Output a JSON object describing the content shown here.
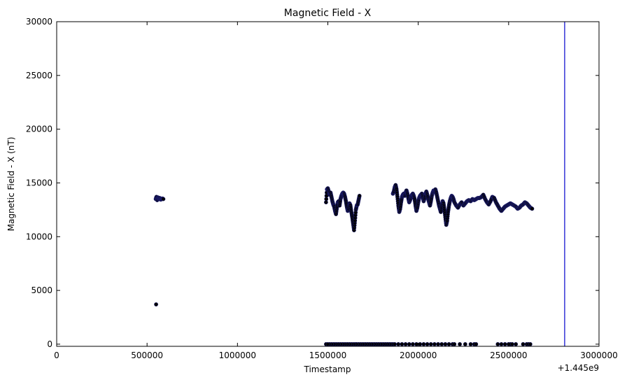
{
  "chart_data": {
    "type": "scatter",
    "title": "Magnetic Field - X",
    "xlabel": "Timestamp",
    "ylabel": "Magnetic Field - X (nT)",
    "x_offset_label": "+1.445e9",
    "xlim": [
      0,
      3000000
    ],
    "ylim": [
      -200,
      30000
    ],
    "xticks": [
      0,
      500000,
      1000000,
      1500000,
      2000000,
      2500000,
      3000000
    ],
    "yticks": [
      0,
      5000,
      10000,
      15000,
      20000,
      25000,
      30000
    ],
    "grid": false,
    "vline": {
      "x": 2810000,
      "color": "#0000cc"
    },
    "series": [
      {
        "marker_color": "#000000",
        "edge_color": "#1a1a66",
        "points": [
          [
            548000,
            13500
          ],
          [
            552000,
            13700
          ],
          [
            556000,
            13400
          ],
          [
            560000,
            13650
          ],
          [
            565000,
            13550
          ],
          [
            570000,
            13600
          ],
          [
            575000,
            13450
          ],
          [
            580000,
            13500
          ],
          [
            585000,
            13550
          ],
          [
            590000,
            13500
          ],
          [
            550000,
            3700
          ],
          [
            1490000,
            13200
          ],
          [
            1495000,
            14400
          ],
          [
            1500000,
            14500
          ],
          [
            1505000,
            14200
          ],
          [
            1510000,
            13900
          ],
          [
            1515000,
            14100
          ],
          [
            1520000,
            13700
          ],
          [
            1525000,
            13300
          ],
          [
            1530000,
            13000
          ],
          [
            1535000,
            12800
          ],
          [
            1540000,
            12400
          ],
          [
            1545000,
            12100
          ],
          [
            1550000,
            12700
          ],
          [
            1555000,
            13200
          ],
          [
            1560000,
            13300
          ],
          [
            1565000,
            12900
          ],
          [
            1570000,
            13500
          ],
          [
            1575000,
            13800
          ],
          [
            1580000,
            14000
          ],
          [
            1585000,
            14100
          ],
          [
            1590000,
            14000
          ],
          [
            1595000,
            13700
          ],
          [
            1600000,
            13300
          ],
          [
            1605000,
            12800
          ],
          [
            1610000,
            12400
          ],
          [
            1615000,
            12600
          ],
          [
            1620000,
            13100
          ],
          [
            1625000,
            12900
          ],
          [
            1630000,
            12300
          ],
          [
            1635000,
            11800
          ],
          [
            1640000,
            11200
          ],
          [
            1645000,
            10600
          ],
          [
            1650000,
            11500
          ],
          [
            1655000,
            12500
          ],
          [
            1660000,
            12900
          ],
          [
            1665000,
            13000
          ],
          [
            1670000,
            13400
          ],
          [
            1675000,
            13800
          ],
          [
            1860000,
            14000
          ],
          [
            1865000,
            14200
          ],
          [
            1870000,
            14600
          ],
          [
            1875000,
            14800
          ],
          [
            1880000,
            14400
          ],
          [
            1885000,
            13700
          ],
          [
            1890000,
            12900
          ],
          [
            1895000,
            12300
          ],
          [
            1900000,
            12600
          ],
          [
            1905000,
            13200
          ],
          [
            1910000,
            13700
          ],
          [
            1915000,
            13900
          ],
          [
            1920000,
            14000
          ],
          [
            1925000,
            13800
          ],
          [
            1930000,
            14100
          ],
          [
            1935000,
            14300
          ],
          [
            1940000,
            14000
          ],
          [
            1945000,
            13600
          ],
          [
            1950000,
            13200
          ],
          [
            1955000,
            13400
          ],
          [
            1960000,
            13700
          ],
          [
            1965000,
            13900
          ],
          [
            1970000,
            14000
          ],
          [
            1975000,
            13800
          ],
          [
            1980000,
            13500
          ],
          [
            1985000,
            12900
          ],
          [
            1990000,
            12400
          ],
          [
            1995000,
            12700
          ],
          [
            2000000,
            13200
          ],
          [
            2005000,
            13600
          ],
          [
            2010000,
            13800
          ],
          [
            2015000,
            13900
          ],
          [
            2020000,
            14000
          ],
          [
            2025000,
            13700
          ],
          [
            2030000,
            13300
          ],
          [
            2035000,
            13600
          ],
          [
            2040000,
            14000
          ],
          [
            2045000,
            14200
          ],
          [
            2050000,
            13900
          ],
          [
            2055000,
            13500
          ],
          [
            2060000,
            13200
          ],
          [
            2065000,
            12900
          ],
          [
            2070000,
            13300
          ],
          [
            2075000,
            13800
          ],
          [
            2080000,
            14100
          ],
          [
            2085000,
            14300
          ],
          [
            2090000,
            14200
          ],
          [
            2095000,
            14400
          ],
          [
            2100000,
            14100
          ],
          [
            2105000,
            13700
          ],
          [
            2110000,
            13300
          ],
          [
            2115000,
            12900
          ],
          [
            2120000,
            12600
          ],
          [
            2125000,
            12300
          ],
          [
            2130000,
            12800
          ],
          [
            2135000,
            13300
          ],
          [
            2140000,
            13100
          ],
          [
            2145000,
            12500
          ],
          [
            2150000,
            11800
          ],
          [
            2155000,
            11100
          ],
          [
            2160000,
            11500
          ],
          [
            2165000,
            12300
          ],
          [
            2170000,
            12900
          ],
          [
            2175000,
            13300
          ],
          [
            2180000,
            13600
          ],
          [
            2185000,
            13800
          ],
          [
            2190000,
            13700
          ],
          [
            2195000,
            13500
          ],
          [
            2200000,
            13200
          ],
          [
            2210000,
            12900
          ],
          [
            2220000,
            12700
          ],
          [
            2230000,
            13000
          ],
          [
            2240000,
            13200
          ],
          [
            2250000,
            12900
          ],
          [
            2260000,
            13100
          ],
          [
            2270000,
            13300
          ],
          [
            2280000,
            13400
          ],
          [
            2290000,
            13300
          ],
          [
            2300000,
            13500
          ],
          [
            2310000,
            13400
          ],
          [
            2320000,
            13500
          ],
          [
            2330000,
            13600
          ],
          [
            2340000,
            13600
          ],
          [
            2350000,
            13700
          ],
          [
            2360000,
            13900
          ],
          [
            2370000,
            13500
          ],
          [
            2380000,
            13200
          ],
          [
            2390000,
            13000
          ],
          [
            2400000,
            13300
          ],
          [
            2410000,
            13700
          ],
          [
            2420000,
            13600
          ],
          [
            2430000,
            13200
          ],
          [
            2440000,
            12900
          ],
          [
            2450000,
            12600
          ],
          [
            2460000,
            12400
          ],
          [
            2470000,
            12600
          ],
          [
            2480000,
            12800
          ],
          [
            2490000,
            12900
          ],
          [
            2500000,
            13000
          ],
          [
            2510000,
            13100
          ],
          [
            2520000,
            13000
          ],
          [
            2530000,
            12900
          ],
          [
            2540000,
            12800
          ],
          [
            2550000,
            12600
          ],
          [
            2560000,
            12700
          ],
          [
            2570000,
            12900
          ],
          [
            2580000,
            13000
          ],
          [
            2590000,
            13200
          ],
          [
            2600000,
            13100
          ],
          [
            2610000,
            12900
          ],
          [
            2620000,
            12700
          ],
          [
            2630000,
            12600
          ],
          [
            1490000,
            0
          ],
          [
            1500000,
            0
          ],
          [
            1510000,
            0
          ],
          [
            1520000,
            0
          ],
          [
            1530000,
            0
          ],
          [
            1540000,
            0
          ],
          [
            1550000,
            0
          ],
          [
            1560000,
            0
          ],
          [
            1570000,
            0
          ],
          [
            1580000,
            0
          ],
          [
            1590000,
            0
          ],
          [
            1600000,
            0
          ],
          [
            1610000,
            0
          ],
          [
            1620000,
            0
          ],
          [
            1630000,
            0
          ],
          [
            1640000,
            0
          ],
          [
            1650000,
            0
          ],
          [
            1660000,
            0
          ],
          [
            1670000,
            0
          ],
          [
            1680000,
            0
          ],
          [
            1690000,
            0
          ],
          [
            1700000,
            0
          ],
          [
            1710000,
            0
          ],
          [
            1720000,
            0
          ],
          [
            1730000,
            0
          ],
          [
            1740000,
            0
          ],
          [
            1750000,
            0
          ],
          [
            1760000,
            0
          ],
          [
            1770000,
            0
          ],
          [
            1780000,
            0
          ],
          [
            1790000,
            0
          ],
          [
            1800000,
            0
          ],
          [
            1810000,
            0
          ],
          [
            1820000,
            0
          ],
          [
            1830000,
            0
          ],
          [
            1840000,
            0
          ],
          [
            1850000,
            0
          ],
          [
            1860000,
            0
          ],
          [
            1870000,
            0
          ],
          [
            1890000,
            0
          ],
          [
            1910000,
            0
          ],
          [
            1930000,
            0
          ],
          [
            1950000,
            0
          ],
          [
            1970000,
            0
          ],
          [
            1990000,
            0
          ],
          [
            2010000,
            0
          ],
          [
            2030000,
            0
          ],
          [
            2050000,
            0
          ],
          [
            2070000,
            0
          ],
          [
            2090000,
            0
          ],
          [
            2110000,
            0
          ],
          [
            2130000,
            0
          ],
          [
            2150000,
            0
          ],
          [
            2170000,
            0
          ],
          [
            2190000,
            0
          ],
          [
            2200000,
            0
          ],
          [
            2230000,
            0
          ],
          [
            2260000,
            0
          ],
          [
            2290000,
            0
          ],
          [
            2310000,
            0
          ],
          [
            2320000,
            0
          ],
          [
            2440000,
            0
          ],
          [
            2460000,
            0
          ],
          [
            2480000,
            0
          ],
          [
            2500000,
            0
          ],
          [
            2510000,
            0
          ],
          [
            2520000,
            0
          ],
          [
            2540000,
            0
          ],
          [
            2580000,
            0
          ],
          [
            2600000,
            0
          ],
          [
            2610000,
            0
          ],
          [
            2620000,
            0
          ]
        ]
      }
    ]
  }
}
